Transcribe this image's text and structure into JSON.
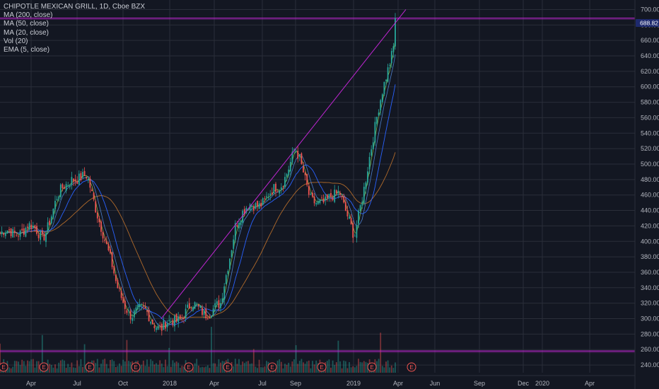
{
  "legend": {
    "title": "CHIPOTLE MEXICAN GRILL, 1D, Cboe BZX",
    "indicators": [
      "MA (200, close)",
      "MA (50, close)",
      "MA (20, close)",
      "Vol (20)",
      "EMA (5, close)"
    ]
  },
  "price_badge": "688.82",
  "colors": {
    "background": "#131722",
    "grid": "#2a2e39",
    "up": "#26a69a",
    "down": "#ef5350",
    "ma200": "#b06a2b",
    "ma50": "#2962ff",
    "ma20": "#4c7ec8",
    "ema5": "#8bc34a",
    "trend": "#c026d3",
    "badge": "#1e2a6e"
  },
  "chart_data": {
    "type": "candlestick",
    "ylim": [
      230,
      705
    ],
    "y_ticks": [
      240,
      260,
      280,
      300,
      320,
      340,
      360,
      380,
      400,
      420,
      440,
      460,
      480,
      500,
      520,
      540,
      560,
      580,
      600,
      620,
      640,
      660,
      680,
      700
    ],
    "x_tick_labels": [
      "Apr",
      "Jul",
      "Oct",
      "2018",
      "Apr",
      "Jul",
      "Sep",
      "2019",
      "Apr",
      "Jun",
      "Sep",
      "Dec",
      "2020",
      "Apr"
    ],
    "last_price": 688.82,
    "earnings_markers": [
      "E",
      "E",
      "E",
      "E",
      "E",
      "E",
      "E",
      "E",
      "E",
      "E"
    ],
    "price_path": [
      [
        "2017-01",
        410
      ],
      [
        "2017-02",
        420
      ],
      [
        "2017-03",
        405
      ],
      [
        "2017-04",
        455
      ],
      [
        "2017-05",
        485
      ],
      [
        "2017-06",
        480
      ],
      [
        "2017-07",
        420
      ],
      [
        "2017-08",
        340
      ],
      [
        "2017-09",
        305
      ],
      [
        "2017-10",
        310
      ],
      [
        "2017-11",
        285
      ],
      [
        "2017-12",
        300
      ],
      [
        "2018-01",
        315
      ],
      [
        "2018-02",
        310
      ],
      [
        "2018-03",
        315
      ],
      [
        "2018-04",
        425
      ],
      [
        "2018-05",
        445
      ],
      [
        "2018-06",
        455
      ],
      [
        "2018-07",
        470
      ],
      [
        "2018-08",
        520
      ],
      [
        "2018-09",
        460
      ],
      [
        "2018-10",
        445
      ],
      [
        "2018-11",
        470
      ],
      [
        "2018-12",
        400
      ],
      [
        "2019-01",
        510
      ],
      [
        "2019-02",
        600
      ],
      [
        "2019-03",
        688
      ]
    ],
    "horizontal_levels": [
      688.82,
      258
    ],
    "trendline": [
      [
        "2017-11",
        300
      ],
      [
        "2019-03",
        700
      ]
    ]
  }
}
